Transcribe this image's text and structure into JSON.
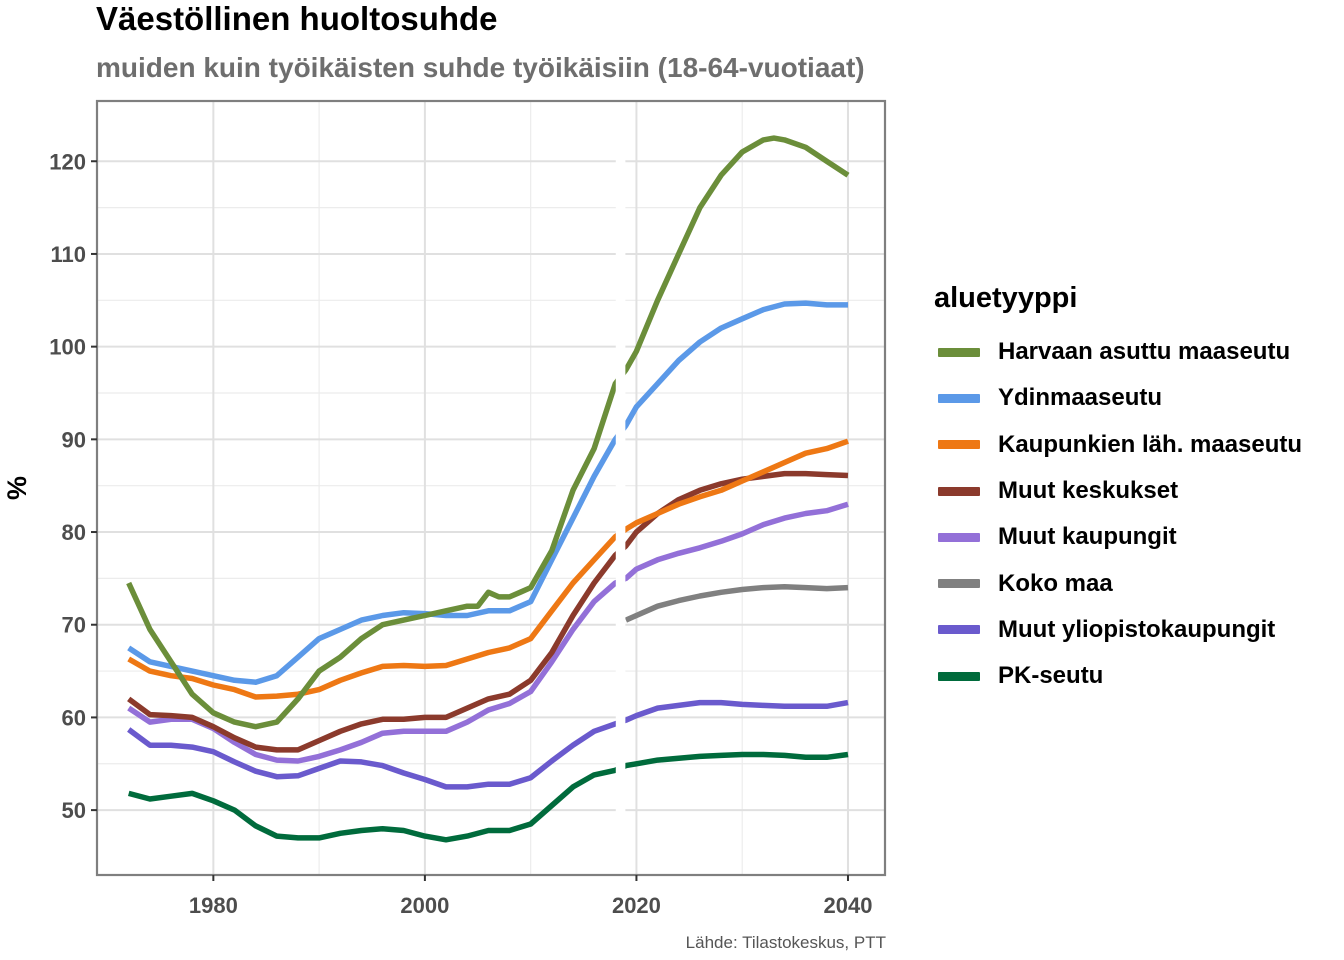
{
  "chart_data": {
    "type": "line",
    "title": "Väestöllinen huoltosuhde",
    "subtitle": "muiden kuin työikäisten suhde työikäisiin (18-64-vuotiaat)",
    "caption": "Lähde: Tilastokeskus, PTT",
    "ylabel": "%",
    "xlabel": "",
    "xlim": [
      1969,
      2043.5
    ],
    "ylim": [
      43,
      126.5
    ],
    "xticks": [
      1980,
      2000,
      2020,
      2040
    ],
    "yticks": [
      50,
      60,
      70,
      80,
      90,
      100,
      110,
      120
    ],
    "grid": true,
    "legend_title": "aluetyyppi",
    "legend_position": "right",
    "projection_gap_between": [
      2018,
      2019
    ],
    "series": [
      {
        "name": "Harvaan asuttu maaseutu",
        "color": "#6b8e3a",
        "x": [
          1972,
          1974,
          1976,
          1978,
          1980,
          1982,
          1984,
          1986,
          1988,
          1990,
          1992,
          1994,
          1996,
          1998,
          2000,
          2002,
          2004,
          2005,
          2006,
          2007,
          2008,
          2009,
          2010,
          2012,
          2014,
          2016,
          2018,
          2019,
          2020,
          2022,
          2024,
          2026,
          2028,
          2030,
          2032,
          2033,
          2034,
          2036,
          2038,
          2040
        ],
        "y": [
          74.5,
          69.5,
          66,
          62.5,
          60.5,
          59.5,
          59,
          59.5,
          62,
          65,
          66.5,
          68.5,
          70,
          70.5,
          71,
          71.5,
          72,
          72,
          73.5,
          73,
          73,
          73.5,
          74,
          78,
          84.5,
          89,
          96,
          97.5,
          99.5,
          105,
          110,
          115,
          118.5,
          121,
          122.3,
          122.5,
          122.3,
          121.5,
          120,
          118.5
        ]
      },
      {
        "name": "Ydinmaaseutu",
        "color": "#5b99e8",
        "x": [
          1972,
          1974,
          1976,
          1978,
          1980,
          1982,
          1984,
          1986,
          1988,
          1990,
          1992,
          1994,
          1996,
          1998,
          2000,
          2002,
          2004,
          2006,
          2008,
          2010,
          2012,
          2014,
          2016,
          2018,
          2019,
          2020,
          2022,
          2024,
          2026,
          2028,
          2030,
          2032,
          2034,
          2036,
          2038,
          2040
        ],
        "y": [
          67.5,
          66,
          65.5,
          65,
          64.5,
          64,
          63.8,
          64.5,
          66.5,
          68.5,
          69.5,
          70.5,
          71,
          71.3,
          71.2,
          71,
          71,
          71.5,
          71.5,
          72.5,
          77,
          81.5,
          86,
          90,
          91.5,
          93.5,
          96,
          98.5,
          100.5,
          102,
          103,
          104,
          104.6,
          104.7,
          104.5,
          104.5
        ]
      },
      {
        "name": "Kaupunkien läh. maaseutu",
        "color": "#ee7814",
        "x": [
          1972,
          1974,
          1976,
          1978,
          1980,
          1982,
          1984,
          1986,
          1988,
          1990,
          1992,
          1994,
          1996,
          1998,
          2000,
          2002,
          2004,
          2006,
          2008,
          2010,
          2012,
          2014,
          2016,
          2018,
          2019,
          2020,
          2022,
          2024,
          2026,
          2028,
          2030,
          2032,
          2034,
          2036,
          2038,
          2040
        ],
        "y": [
          66.3,
          65,
          64.5,
          64.2,
          63.5,
          63,
          62.2,
          62.3,
          62.5,
          63,
          64,
          64.8,
          65.5,
          65.6,
          65.5,
          65.6,
          66.3,
          67,
          67.5,
          68.5,
          71.5,
          74.5,
          77,
          79.5,
          80.3,
          81,
          82,
          83,
          83.8,
          84.5,
          85.5,
          86.5,
          87.5,
          88.5,
          89,
          89.8
        ]
      },
      {
        "name": "Muut keskukset",
        "color": "#8b3a2c",
        "x": [
          1972,
          1974,
          1976,
          1978,
          1980,
          1982,
          1984,
          1986,
          1988,
          1990,
          1992,
          1994,
          1996,
          1998,
          2000,
          2002,
          2004,
          2006,
          2008,
          2010,
          2012,
          2014,
          2016,
          2018,
          2019,
          2020,
          2022,
          2024,
          2026,
          2028,
          2030,
          2032,
          2034,
          2036,
          2038,
          2040
        ],
        "y": [
          62,
          60.3,
          60.2,
          60,
          59,
          57.8,
          56.8,
          56.5,
          56.5,
          57.5,
          58.5,
          59.3,
          59.8,
          59.8,
          60,
          60,
          61,
          62,
          62.5,
          64,
          67,
          71,
          74.5,
          77.5,
          78.5,
          80,
          82,
          83.5,
          84.5,
          85.2,
          85.7,
          86,
          86.3,
          86.3,
          86.2,
          86.1
        ]
      },
      {
        "name": "Muut kaupungit",
        "color": "#9370d8",
        "x": [
          1972,
          1974,
          1976,
          1978,
          1980,
          1982,
          1984,
          1986,
          1988,
          1990,
          1992,
          1994,
          1996,
          1998,
          2000,
          2002,
          2004,
          2006,
          2008,
          2010,
          2012,
          2014,
          2016,
          2018,
          2019,
          2020,
          2022,
          2024,
          2026,
          2028,
          2030,
          2032,
          2034,
          2036,
          2038,
          2040
        ],
        "y": [
          61,
          59.5,
          59.8,
          59.8,
          58.8,
          57.3,
          56,
          55.4,
          55.3,
          55.8,
          56.5,
          57.3,
          58.3,
          58.5,
          58.5,
          58.5,
          59.5,
          60.8,
          61.5,
          62.8,
          66,
          69.5,
          72.5,
          74.5,
          75,
          76,
          77,
          77.7,
          78.3,
          79,
          79.8,
          80.8,
          81.5,
          82,
          82.3,
          83
        ]
      },
      {
        "name": "Koko maa",
        "color": "#808080",
        "x": [
          2019,
          2020,
          2022,
          2024,
          2026,
          2028,
          2030,
          2032,
          2034,
          2036,
          2038,
          2040
        ],
        "y": [
          70.5,
          71,
          72,
          72.6,
          73.1,
          73.5,
          73.8,
          74,
          74.1,
          74,
          73.9,
          74
        ]
      },
      {
        "name": "Muut yliopistokaupungit",
        "color": "#6a5acd",
        "x": [
          1972,
          1974,
          1976,
          1978,
          1980,
          1982,
          1984,
          1986,
          1988,
          1990,
          1992,
          1994,
          1996,
          1998,
          2000,
          2002,
          2004,
          2006,
          2008,
          2010,
          2012,
          2014,
          2016,
          2018,
          2019,
          2020,
          2022,
          2024,
          2026,
          2028,
          2030,
          2032,
          2034,
          2036,
          2038,
          2040
        ],
        "y": [
          58.7,
          57,
          57,
          56.8,
          56.3,
          55.2,
          54.2,
          53.6,
          53.7,
          54.5,
          55.3,
          55.2,
          54.8,
          54,
          53.3,
          52.5,
          52.5,
          52.8,
          52.8,
          53.5,
          55.3,
          57,
          58.5,
          59.3,
          59.7,
          60.2,
          61,
          61.3,
          61.6,
          61.6,
          61.4,
          61.3,
          61.2,
          61.2,
          61.2,
          61.6
        ]
      },
      {
        "name": "PK-seutu",
        "color": "#006b3c",
        "x": [
          1972,
          1974,
          1976,
          1978,
          1980,
          1982,
          1984,
          1986,
          1988,
          1990,
          1992,
          1994,
          1996,
          1998,
          2000,
          2002,
          2004,
          2006,
          2008,
          2010,
          2012,
          2014,
          2016,
          2018,
          2019,
          2020,
          2022,
          2024,
          2026,
          2028,
          2030,
          2032,
          2034,
          2036,
          2038,
          2040
        ],
        "y": [
          51.8,
          51.2,
          51.5,
          51.8,
          51,
          50,
          48.3,
          47.2,
          47,
          47,
          47.5,
          47.8,
          48,
          47.8,
          47.2,
          46.8,
          47.2,
          47.8,
          47.8,
          48.5,
          50.5,
          52.5,
          53.8,
          54.3,
          54.8,
          55,
          55.4,
          55.6,
          55.8,
          55.9,
          56,
          56,
          55.9,
          55.7,
          55.7,
          56
        ]
      }
    ]
  }
}
